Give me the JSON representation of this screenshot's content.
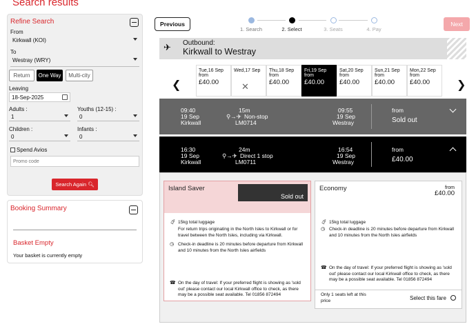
{
  "page": {
    "title": "Search results"
  },
  "refine": {
    "title": "Refine Search",
    "from_label": "From",
    "from_value": "Kirkwall (KOI)",
    "to_label": "To",
    "to_value": "Westray (WRY)",
    "trip_types": [
      "Return",
      "One Way",
      "Multi-city"
    ],
    "selected_trip": "One Way",
    "leaving_label": "Leaving",
    "leaving_value": "18-Sep-2025",
    "adults_label": "Adults :",
    "adults_value": "1",
    "youths_label": "Youths (12-15) :",
    "youths_value": "0",
    "children_label": "Children :",
    "children_value": "0",
    "infants_label": "Infants :",
    "infants_value": "0",
    "avios_label": "Spend Avios",
    "promo_placeholder": "Promo code",
    "search_again": "Search Again"
  },
  "booking": {
    "title": "Booking Summary",
    "basket_title": "Basket Empty",
    "basket_text": "Your basket is currently empty"
  },
  "nav": {
    "previous": "Previous",
    "next": "Next",
    "steps": [
      {
        "label": "1. Search",
        "state": "done"
      },
      {
        "label": "2. Select",
        "state": "current"
      },
      {
        "label": "3. Seats",
        "state": "todo"
      },
      {
        "label": "4. Pay",
        "state": "todo"
      }
    ]
  },
  "outbound": {
    "label": "Outbound:",
    "route": "Kirkwall to Westray"
  },
  "dates": [
    {
      "day": "Tue,16 Sep",
      "from": "from",
      "price": "£40.00",
      "selected": false,
      "available": true
    },
    {
      "day": "Wed,17 Sep",
      "from": "",
      "price": "",
      "selected": false,
      "available": false
    },
    {
      "day": "Thu,18 Sep",
      "from": "from",
      "price": "£40.00",
      "selected": false,
      "available": true
    },
    {
      "day": "Fri,19 Sep",
      "from": "from",
      "price": "£40.00",
      "selected": true,
      "available": true
    },
    {
      "day": "Sat,20 Sep",
      "from": "from",
      "price": "£40.00",
      "selected": false,
      "available": true
    },
    {
      "day": "Sun,21 Sep",
      "from": "from",
      "price": "£40.00",
      "selected": false,
      "available": true
    },
    {
      "day": "Mon,22 Sep",
      "from": "from",
      "price": "£40.00",
      "selected": false,
      "available": true
    }
  ],
  "flights": [
    {
      "dep_time": "09:40",
      "dep_date": "19 Sep",
      "dep_place": "Kirkwall",
      "duration": "15m",
      "stops": "Non-stop",
      "flight_no": "LM0714",
      "arr_time": "09:55",
      "arr_date": "19 Sep",
      "arr_place": "Westray",
      "from": "from",
      "price": "Sold out"
    },
    {
      "dep_time": "16:30",
      "dep_date": "19 Sep",
      "dep_place": "Kirkwall",
      "duration": "24m",
      "stops": "Direct 1 stop",
      "flight_no": "LM0711",
      "arr_time": "16:54",
      "arr_date": "19 Sep",
      "arr_place": "Westray",
      "from": "from",
      "price": "£40.00"
    }
  ],
  "fares": {
    "saver": {
      "title": "Island Saver",
      "status": "Sold out",
      "luggage": "15kg total luggage",
      "note": "For return trips originating in the North Isles to Kirkwall or for travel between the North Isles, including via Kirkwall.",
      "checkin": "Check-in deadline is 20 minutes before departure from Kirkwall and 10 minutes from the North Isles airfields",
      "day_of_travel": "On the day of travel: If your preferred flight is showing as 'sold out' please contact our local Kirkwall office to check, as there may be a possible seat available. Tel 01856 872494"
    },
    "economy": {
      "title": "Economy",
      "from": "from",
      "price": "£40.00",
      "luggage": "15kg total luggage",
      "checkin": "Check-in deadline is 20 minutes before departure from Kirkwall and 10 minutes from the North Isles airfields",
      "day_of_travel": "On the day of travel: If your preferred flight is showing as 'sold out' please contact our local Kirkwall office to check, as there may be a possible seat available. Tel 01856 872494",
      "seats_left": "Only 1 seats left at this price",
      "select": "Select this fare"
    }
  }
}
